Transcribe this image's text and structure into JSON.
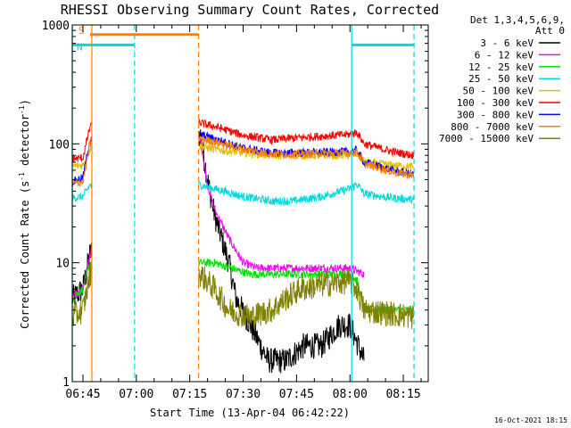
{
  "chart_data": {
    "type": "line",
    "title": "RHESSI Observing Summary Count Rates, Corrected",
    "xlabel": "Start Time (13-Apr-04 06:42:22)",
    "ylabel_main": "Corrected Count Rate (s",
    "ylabel_sup1": "-1",
    "ylabel_mid": " detector",
    "ylabel_sup2": "-1",
    "ylabel_end": ")",
    "y_scale": "log",
    "ylim": [
      1,
      1000
    ],
    "xlim_minutes": [
      0,
      100
    ],
    "x_tick_labels": [
      {
        "t": 3,
        "label": "06:45"
      },
      {
        "t": 18,
        "label": "07:00"
      },
      {
        "t": 33,
        "label": "07:15"
      },
      {
        "t": 48,
        "label": "07:30"
      },
      {
        "t": 63,
        "label": "07:45"
      },
      {
        "t": 78,
        "label": "08:00"
      },
      {
        "t": 93,
        "label": "08:15"
      }
    ],
    "y_tick_labels": [
      {
        "v": 1,
        "label": "1"
      },
      {
        "v": 10,
        "label": "10"
      },
      {
        "v": 100,
        "label": "100"
      },
      {
        "v": 1000,
        "label": "1000"
      }
    ],
    "legend_header": [
      "Det 1,3,4,5,6,9,",
      "Att 0"
    ],
    "legend_placement": "right",
    "series": [
      {
        "name": "3 - 6 keV",
        "color": "#000000",
        "points": [
          [
            0,
            5
          ],
          [
            3,
            6
          ],
          [
            5,
            12
          ],
          [
            36,
            120
          ],
          [
            38,
            50
          ],
          [
            40,
            25
          ],
          [
            44,
            10
          ],
          [
            46,
            5
          ],
          [
            50,
            3
          ],
          [
            55,
            1.5
          ],
          [
            60,
            1.5
          ],
          [
            65,
            2
          ],
          [
            70,
            2
          ],
          [
            75,
            3
          ],
          [
            78,
            3
          ],
          [
            82,
            1.5
          ]
        ]
      },
      {
        "name": "6 - 12 keV",
        "color": "#ff00ff",
        "points": [
          [
            0,
            5
          ],
          [
            3,
            6
          ],
          [
            5,
            12
          ],
          [
            36,
            110
          ],
          [
            38,
            45
          ],
          [
            40,
            28
          ],
          [
            44,
            16
          ],
          [
            48,
            10
          ],
          [
            52,
            9
          ],
          [
            60,
            9
          ],
          [
            70,
            9
          ],
          [
            78,
            9
          ],
          [
            82,
            8
          ]
        ]
      },
      {
        "name": "12 - 25 keV",
        "color": "#00e000",
        "points": [
          [
            0,
            5
          ],
          [
            3,
            6
          ],
          [
            5,
            10
          ],
          [
            36,
            10
          ],
          [
            40,
            10
          ],
          [
            50,
            8
          ],
          [
            60,
            8
          ],
          [
            70,
            8
          ],
          [
            78,
            8
          ],
          [
            80,
            7
          ],
          [
            82,
            4
          ],
          [
            96,
            4
          ]
        ]
      },
      {
        "name": "25 - 50 keV",
        "color": "#00d8e0",
        "points": [
          [
            0,
            35
          ],
          [
            3,
            36
          ],
          [
            5,
            45
          ],
          [
            36,
            45
          ],
          [
            40,
            42
          ],
          [
            48,
            36
          ],
          [
            56,
            33
          ],
          [
            62,
            33
          ],
          [
            70,
            36
          ],
          [
            78,
            42
          ],
          [
            80,
            46
          ],
          [
            82,
            38
          ],
          [
            90,
            35
          ],
          [
            96,
            34
          ]
        ]
      },
      {
        "name": "50 - 100 keV",
        "color": "#e0c000",
        "points": [
          [
            0,
            65
          ],
          [
            3,
            66
          ],
          [
            5,
            90
          ],
          [
            36,
            95
          ],
          [
            40,
            90
          ],
          [
            48,
            84
          ],
          [
            56,
            80
          ],
          [
            62,
            80
          ],
          [
            70,
            80
          ],
          [
            78,
            80
          ],
          [
            80,
            82
          ],
          [
            82,
            70
          ],
          [
            90,
            66
          ],
          [
            96,
            64
          ]
        ]
      },
      {
        "name": "100 - 300 keV",
        "color": "#ff0000",
        "points": [
          [
            0,
            75
          ],
          [
            3,
            76
          ],
          [
            5,
            140
          ],
          [
            36,
            150
          ],
          [
            40,
            140
          ],
          [
            48,
            118
          ],
          [
            56,
            108
          ],
          [
            62,
            112
          ],
          [
            70,
            116
          ],
          [
            78,
            120
          ],
          [
            80,
            125
          ],
          [
            82,
            100
          ],
          [
            90,
            86
          ],
          [
            96,
            80
          ]
        ]
      },
      {
        "name": "300 - 800 keV",
        "color": "#0000ff",
        "points": [
          [
            0,
            48
          ],
          [
            3,
            52
          ],
          [
            5,
            110
          ],
          [
            36,
            120
          ],
          [
            40,
            110
          ],
          [
            48,
            92
          ],
          [
            56,
            84
          ],
          [
            62,
            84
          ],
          [
            70,
            85
          ],
          [
            78,
            86
          ],
          [
            80,
            88
          ],
          [
            82,
            70
          ],
          [
            90,
            60
          ],
          [
            96,
            55
          ]
        ]
      },
      {
        "name": "800 - 7000 keV",
        "color": "#ff8000",
        "points": [
          [
            0,
            46
          ],
          [
            3,
            48
          ],
          [
            5,
            100
          ],
          [
            36,
            110
          ],
          [
            40,
            104
          ],
          [
            48,
            90
          ],
          [
            56,
            82
          ],
          [
            62,
            82
          ],
          [
            70,
            83
          ],
          [
            78,
            84
          ],
          [
            80,
            86
          ],
          [
            82,
            68
          ],
          [
            90,
            58
          ],
          [
            96,
            54
          ]
        ]
      },
      {
        "name": "7000 - 15000 keV",
        "color": "#808000",
        "points": [
          [
            0,
            3.5
          ],
          [
            3,
            4
          ],
          [
            5,
            8
          ],
          [
            36,
            8
          ],
          [
            40,
            6
          ],
          [
            44,
            4
          ],
          [
            50,
            3.5
          ],
          [
            56,
            4
          ],
          [
            60,
            5
          ],
          [
            64,
            6
          ],
          [
            70,
            6.5
          ],
          [
            78,
            7
          ],
          [
            80,
            6
          ],
          [
            82,
            4
          ],
          [
            96,
            3.5
          ]
        ]
      }
    ],
    "data_gaps_minutes": [
      [
        5.5,
        35.5
      ]
    ],
    "flag_bars": [
      {
        "label": "S",
        "color": "#ff8000",
        "t_start": 5,
        "t_end": 35.5,
        "level": 830
      },
      {
        "label": "N",
        "color": "#00d8e0",
        "t_start": 0,
        "t_end": 17.5,
        "level": 680
      },
      {
        "label": "",
        "color": "#00d8e0",
        "t_start": 78.5,
        "t_end": 96,
        "level": 680
      }
    ],
    "vertical_markers": [
      {
        "t": 0,
        "color": "#00d8e0",
        "style": "solid"
      },
      {
        "t": 5.5,
        "color": "#ff8000",
        "style": "solid"
      },
      {
        "t": 17.5,
        "color": "#00d8e0",
        "style": "dashed"
      },
      {
        "t": 35.5,
        "color": "#ff8000",
        "style": "dashed"
      },
      {
        "t": 78.5,
        "color": "#00d8e0",
        "style": "solid"
      },
      {
        "t": 96,
        "color": "#00d8e0",
        "style": "dashed"
      }
    ],
    "footer_stamp": "16-Oct-2021 18:15"
  }
}
